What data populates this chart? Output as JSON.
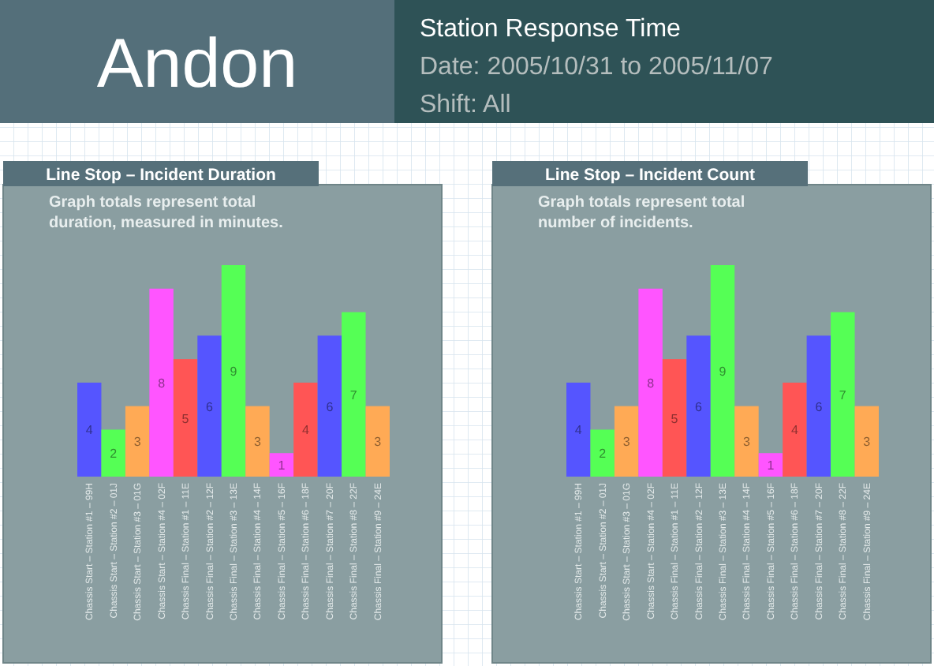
{
  "chart_data": [
    {
      "type": "other",
      "title": "Andon",
      "subtitle": "Station Response Time",
      "annotations": [
        "Date: 2005/10/31 to 2005/11/07",
        "Shift: All"
      ]
    },
    {
      "type": "bar",
      "title": "Line Stop – Incident Duration",
      "annotations": [
        "Graph totals represent total duration, measured in minutes."
      ],
      "categories": [
        "Chassis Start – Station #1 – 99H",
        "Chassis Start – Station #2 – 01J",
        "Chassis Start – Station #3 – 01G",
        "Chassis Start – Station #4 – 02F",
        "Chassis Final – Station #1 – 11E",
        "Chassis Final – Station #2 – 12F",
        "Chassis Final – Station #3 – 13E",
        "Chassis Final – Station #4 – 14F",
        "Chassis Final – Station #5 – 16F",
        "Chassis Final – Station #6 – 18F",
        "Chassis Final – Station #7 – 20F",
        "Chassis Final – Station #8 – 22F",
        "Chassis Final – Station #9 – 24E"
      ],
      "values": [
        4,
        2,
        3,
        8,
        5,
        6,
        9,
        3,
        1,
        4,
        6,
        7,
        3
      ],
      "colors": [
        "#5555ff",
        "#55ff55",
        "#ffaa55",
        "#ff55ff",
        "#ff5555",
        "#5555ff",
        "#55ff55",
        "#ffaa55",
        "#ff55ff",
        "#ff5555",
        "#5555ff",
        "#55ff55",
        "#ffaa55"
      ],
      "data_labels": true
    },
    {
      "type": "bar",
      "title": "Line Stop – Incident Count",
      "annotations": [
        "Graph totals represent total number of incidents."
      ],
      "categories": [
        "Chassis Start – Station #1 – 99H",
        "Chassis Start – Station #2 – 01J",
        "Chassis Start – Station #3 – 01G",
        "Chassis Start – Station #4 – 02F",
        "Chassis Final – Station #1 – 11E",
        "Chassis Final – Station #2 – 12F",
        "Chassis Final – Station #3 – 13E",
        "Chassis Final – Station #4 – 14F",
        "Chassis Final – Station #5 – 16F",
        "Chassis Final – Station #6 – 18F",
        "Chassis Final – Station #7 – 20F",
        "Chassis Final – Station #8 – 22F",
        "Chassis Final – Station #9 – 24E"
      ],
      "values": [
        4,
        2,
        3,
        8,
        5,
        6,
        9,
        3,
        1,
        4,
        6,
        7,
        3
      ],
      "colors": [
        "#5555ff",
        "#55ff55",
        "#ffaa55",
        "#ff55ff",
        "#ff5555",
        "#5555ff",
        "#55ff55",
        "#ffaa55",
        "#ff55ff",
        "#ff5555",
        "#5555ff",
        "#55ff55",
        "#ffaa55"
      ],
      "data_labels": true
    }
  ]
}
